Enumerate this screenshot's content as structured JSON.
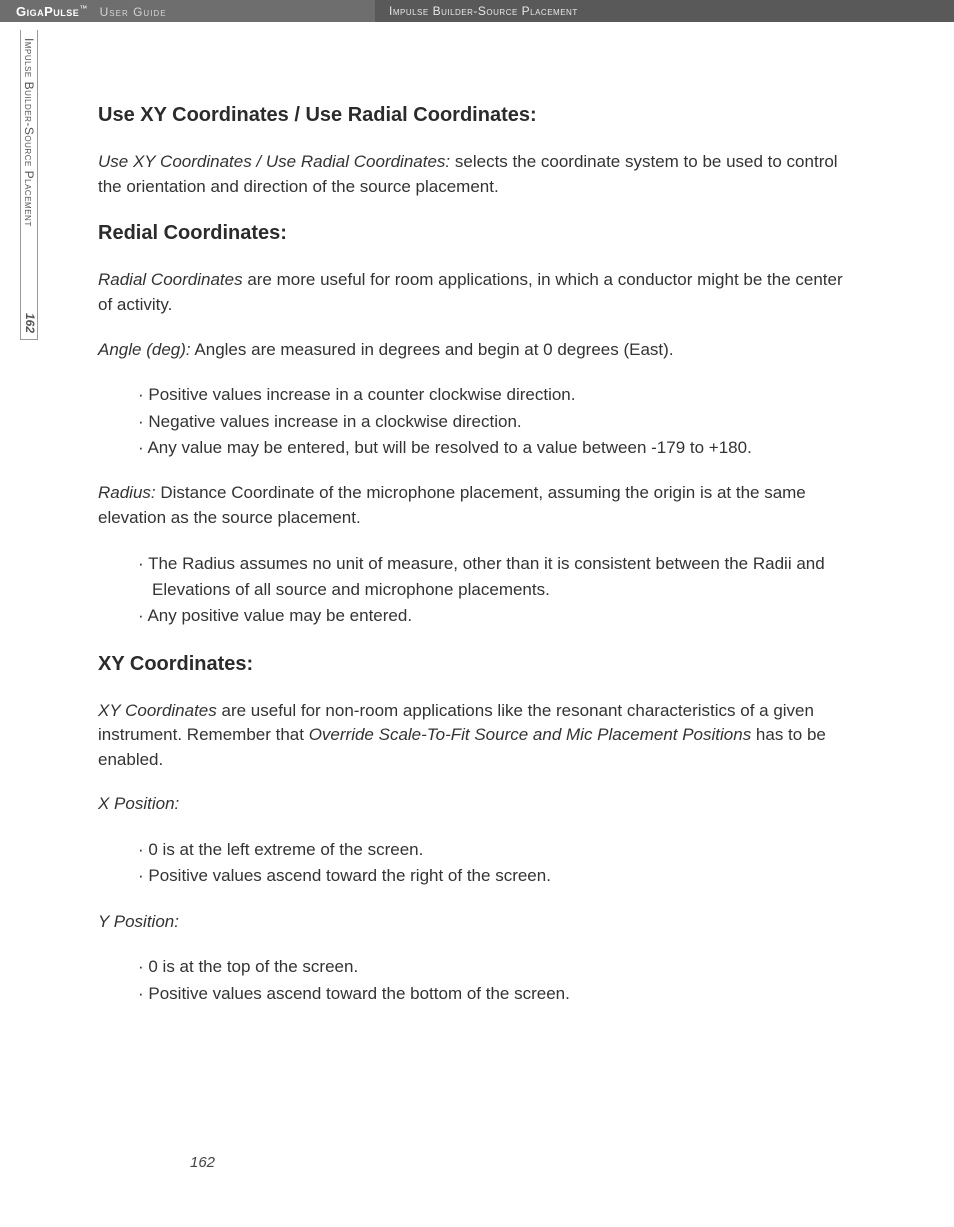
{
  "header": {
    "brand": "GigaPulse",
    "tm": "™",
    "guide": "User Guide",
    "section": "Impulse Builder-Source Placement"
  },
  "sidetab": {
    "label": "Impulse Builder-Source Placement",
    "page": "162"
  },
  "body": {
    "h1": "Use XY Coordinates / Use Radial Coordinates:",
    "p1a": "Use XY Coordinates / Use Radial Coordinates:",
    "p1b": " selects the coordinate system to be used to control the orientation and direction of the source placement.",
    "h2": "Redial Coordinates:",
    "p2a": "Radial Coordinates",
    "p2b": " are more useful for room applications, in which a conductor might be the center of activity.",
    "p3a": "Angle (deg):",
    "p3b": " Angles are measured in degrees and begin at 0 degrees (East).",
    "list1": {
      "i1": "·  Positive values increase in a counter clockwise direction.",
      "i2": "·  Negative values increase in a clockwise direction.",
      "i3": "·  Any value may be entered, but will be resolved to a value between -179 to +180."
    },
    "p4a": "Radius:",
    "p4b": " Distance Coordinate of the microphone placement, assuming the origin is at the same elevation as the source placement.",
    "list2": {
      "i1": "·  The Radius assumes no unit of measure, other than it is consistent between the Radii and Elevations of all source and microphone placements.",
      "i2": "·  Any positive value may be entered."
    },
    "h3": "XY Coordinates:",
    "p5a": "XY Coordinates",
    "p5b": " are useful for non-room applications like the resonant characteristics of a given instrument.  Remember that ",
    "p5c": "Override Scale-To-Fit Source and Mic Placement Positions",
    "p5d": " has to be enabled.",
    "p6": "X Position:",
    "list3": {
      "i1": "·  0 is at the left extreme of the screen.",
      "i2": "·  Positive values ascend toward the right of the screen."
    },
    "p7": "Y Position:",
    "list4": {
      "i1": "·  0 is at the top of the screen.",
      "i2": "·  Positive values ascend toward the bottom of the screen."
    }
  },
  "footer": {
    "page": "162"
  }
}
